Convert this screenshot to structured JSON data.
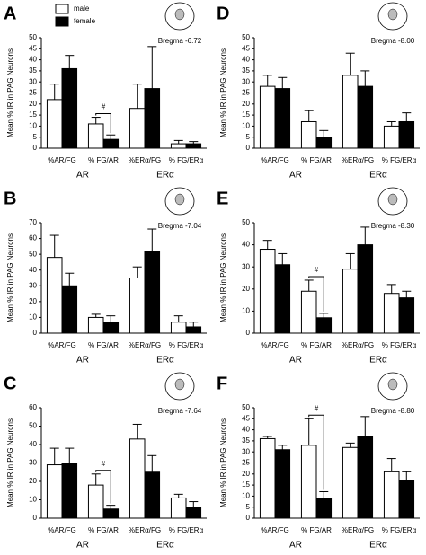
{
  "chart_data": [
    {
      "type": "bar",
      "panel": "A",
      "bregma": "Bregma -6.72",
      "ylabel": "Mean % IR in PAG Neurons",
      "categories": [
        "%AR/FG",
        "% FG/AR",
        "%ERα/FG",
        "% FG/ERα"
      ],
      "groups": [
        "AR",
        "ERα"
      ],
      "series": [
        {
          "name": "male",
          "color": "#ffffff",
          "values": [
            22,
            11,
            18,
            2
          ],
          "errors": [
            7,
            3,
            11,
            1.5
          ]
        },
        {
          "name": "female",
          "color": "#000000",
          "values": [
            36,
            4,
            27,
            2
          ],
          "errors": [
            6,
            2,
            19,
            1
          ]
        }
      ],
      "legend": true,
      "significance": {
        "label": "#",
        "category": "% FG/AR"
      },
      "ylim": [
        0,
        50
      ],
      "yticks": [
        0,
        5,
        10,
        15,
        20,
        25,
        30,
        35,
        40,
        45,
        50
      ]
    },
    {
      "type": "bar",
      "panel": "D",
      "bregma": "Bregma -8.00",
      "ylabel": "Mean % IR in PAG Neurons",
      "categories": [
        "%AR/FG",
        "% FG/AR",
        "%ERα/FG",
        "% FG/ERα"
      ],
      "groups": [
        "AR",
        "ERα"
      ],
      "series": [
        {
          "color": "#ffffff",
          "values": [
            28,
            12,
            33,
            10
          ],
          "errors": [
            5,
            5,
            10,
            2
          ]
        },
        {
          "color": "#000000",
          "values": [
            27,
            5,
            28,
            12
          ],
          "errors": [
            5,
            3,
            7,
            4
          ]
        }
      ],
      "ylim": [
        0,
        50
      ],
      "yticks": [
        0,
        5,
        10,
        15,
        20,
        25,
        30,
        35,
        40,
        45,
        50
      ]
    },
    {
      "type": "bar",
      "panel": "B",
      "bregma": "Bregma -7.04",
      "ylabel": "Mean % IR in PAG Neurons",
      "categories": [
        "%AR/FG",
        "% FG/AR",
        "%ERα/FG",
        "% FG/ERα"
      ],
      "groups": [
        "AR",
        "ERα"
      ],
      "series": [
        {
          "color": "#ffffff",
          "values": [
            48,
            10,
            35,
            7
          ],
          "errors": [
            14,
            2,
            7,
            4
          ]
        },
        {
          "color": "#000000",
          "values": [
            30,
            7,
            52,
            4
          ],
          "errors": [
            8,
            4,
            14,
            3
          ]
        }
      ],
      "ylim": [
        0,
        70
      ],
      "yticks": [
        0,
        10,
        20,
        30,
        40,
        50,
        60,
        70
      ]
    },
    {
      "type": "bar",
      "panel": "E",
      "bregma": "Bregma -8.30",
      "ylabel": "Mean % IR in PAG Neurons",
      "categories": [
        "%AR/FG",
        "% FG/AR",
        "%ERα/FG",
        "% FG/ERα"
      ],
      "groups": [
        "AR",
        "ERα"
      ],
      "series": [
        {
          "color": "#ffffff",
          "values": [
            38,
            19,
            29,
            18
          ],
          "errors": [
            4,
            5,
            7,
            4
          ]
        },
        {
          "color": "#000000",
          "values": [
            31,
            7,
            40,
            16
          ],
          "errors": [
            5,
            2,
            8,
            3
          ]
        }
      ],
      "significance": {
        "label": "#",
        "category": "% FG/AR"
      },
      "ylim": [
        0,
        50
      ],
      "yticks": [
        0,
        10,
        20,
        30,
        40,
        50
      ]
    },
    {
      "type": "bar",
      "panel": "C",
      "bregma": "Bregma -7.64",
      "ylabel": "Mean % IR in PAG Neurons",
      "categories": [
        "%AR/FG",
        "% FG/AR",
        "%ERα/FG",
        "% FG/ERα"
      ],
      "groups": [
        "AR",
        "ERα"
      ],
      "series": [
        {
          "color": "#ffffff",
          "values": [
            29,
            18,
            43,
            11
          ],
          "errors": [
            9,
            6,
            8,
            2
          ]
        },
        {
          "color": "#000000",
          "values": [
            30,
            5,
            25,
            6
          ],
          "errors": [
            8,
            2,
            9,
            3
          ]
        }
      ],
      "significance": {
        "label": "#",
        "category": "% FG/AR"
      },
      "ylim": [
        0,
        60
      ],
      "yticks": [
        0,
        10,
        20,
        30,
        40,
        50,
        60
      ]
    },
    {
      "type": "bar",
      "panel": "F",
      "bregma": "Bregma -8.80",
      "ylabel": "Mean % IR in PAG Neurons",
      "categories": [
        "%AR/FG",
        "% FG/AR",
        "%ERα/FG",
        "% FG/ERα"
      ],
      "groups": [
        "AR",
        "ERα"
      ],
      "series": [
        {
          "color": "#ffffff",
          "values": [
            36,
            33,
            32,
            21
          ],
          "errors": [
            1,
            12,
            2,
            6
          ]
        },
        {
          "color": "#000000",
          "values": [
            31,
            9,
            37,
            17
          ],
          "errors": [
            2,
            3,
            9,
            4
          ]
        }
      ],
      "significance": {
        "label": "#",
        "category": "% FG/AR"
      },
      "ylim": [
        0,
        50
      ],
      "yticks": [
        0,
        5,
        10,
        15,
        20,
        25,
        30,
        35,
        40,
        45,
        50
      ]
    }
  ]
}
